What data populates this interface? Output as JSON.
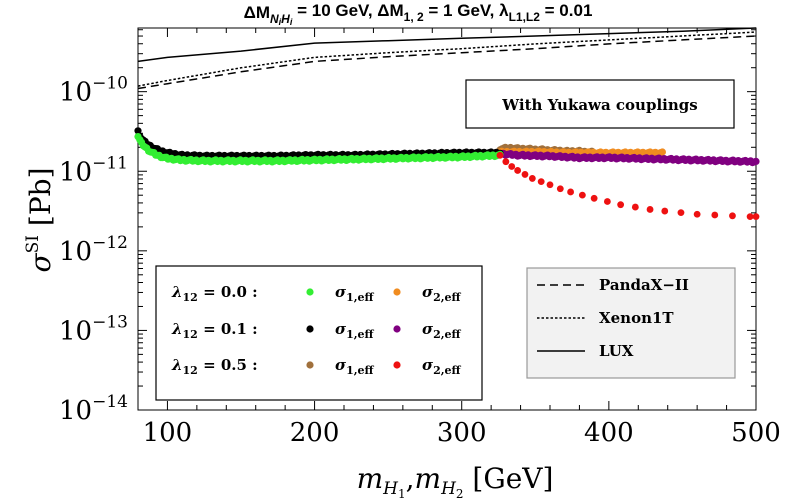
{
  "chart_data": {
    "type": "scatter",
    "title": "ΔM",
    "title_parts": {
      "delta_m": "ΔM",
      "sub_nh": "N",
      "sub_nh_i": "i",
      "sub_h": "H",
      "sub_h_i": "i",
      "value1": " = 10 GeV, ΔM",
      "sub_12": "1, 2",
      "value2": " = 1 GeV, λ",
      "sub_l": "L1,L2",
      "value3": " = 0.01"
    },
    "xlabel_parts": {
      "m": "m",
      "sub_h1": "H",
      "sub_h1_idx": "1",
      "comma": ",",
      "sub_h2": "H",
      "sub_h2_idx": "2",
      "unit": " [GeV]"
    },
    "ylabel_parts": {
      "sigma": "σ",
      "sup": "SI",
      "unit": " [Pb]"
    },
    "xlim": [
      80,
      500
    ],
    "ylim_log10": [
      -14,
      -9.2
    ],
    "yscale": "log",
    "x_ticks": [
      "100",
      "200",
      "300",
      "400",
      "500"
    ],
    "x_tick_values": [
      100,
      200,
      300,
      400,
      500
    ],
    "y_ticks": [
      {
        "base": "10",
        "exp": "−10",
        "value": -10
      },
      {
        "base": "10",
        "exp": "−11",
        "value": -11
      },
      {
        "base": "10",
        "exp": "−12",
        "value": -12
      },
      {
        "base": "10",
        "exp": "−13",
        "value": -13
      },
      {
        "base": "10",
        "exp": "−14",
        "value": -14
      }
    ],
    "annotation": "With Yukawa couplings",
    "limit_curves": [
      {
        "name": "LUX",
        "style": "solid",
        "x": [
          80,
          100,
          150,
          200,
          250,
          300,
          350,
          400,
          450,
          500
        ],
        "log10_y": [
          -9.62,
          -9.57,
          -9.49,
          -9.39,
          -9.36,
          -9.33,
          -9.3,
          -9.27,
          -9.24,
          -9.2
        ]
      },
      {
        "name": "Xenon1T",
        "style": "dotted",
        "x": [
          80,
          100,
          150,
          200,
          250,
          300,
          350,
          400,
          450,
          500
        ],
        "log10_y": [
          -9.93,
          -9.86,
          -9.7,
          -9.57,
          -9.51,
          -9.46,
          -9.4,
          -9.35,
          -9.3,
          -9.25
        ]
      },
      {
        "name": "PandaX−II",
        "style": "dashed",
        "x": [
          80,
          100,
          150,
          200,
          250,
          300,
          350,
          400,
          450,
          500
        ],
        "log10_y": [
          -9.96,
          -9.9,
          -9.75,
          -9.62,
          -9.56,
          -9.51,
          -9.46,
          -9.4,
          -9.35,
          -9.3
        ]
      }
    ],
    "series": [
      {
        "lambda": "0.5",
        "sigma_index": "1",
        "color": "#a0703c",
        "label": "σ",
        "x": [
          326,
          330,
          335,
          340,
          345,
          350,
          355,
          360,
          365,
          370,
          375,
          380,
          385,
          390
        ],
        "log10_y": [
          -10.72,
          -10.71,
          -10.71,
          -10.72,
          -10.72,
          -10.73,
          -10.73,
          -10.74,
          -10.74,
          -10.75,
          -10.75,
          -10.75,
          -10.76,
          -10.76
        ]
      },
      {
        "lambda": "0.0",
        "sigma_index": "2",
        "color": "#f08c20",
        "label": "σ",
        "x": [
          326,
          340,
          355,
          370,
          385,
          400,
          415,
          425,
          437
        ],
        "log10_y": [
          -10.76,
          -10.76,
          -10.76,
          -10.77,
          -10.77,
          -10.77,
          -10.77,
          -10.77,
          -10.77
        ]
      },
      {
        "lambda": "0.1",
        "sigma_index": "2",
        "color": "#800080",
        "label": "σ",
        "x": [
          326,
          340,
          360,
          380,
          400,
          420,
          440,
          460,
          480,
          500
        ],
        "log10_y": [
          -10.78,
          -10.8,
          -10.81,
          -10.83,
          -10.83,
          -10.84,
          -10.85,
          -10.86,
          -10.87,
          -10.88
        ]
      },
      {
        "lambda": "0.1",
        "sigma_index": "1",
        "color": "#000000",
        "label": "σ",
        "x": [
          80,
          82,
          85,
          88,
          92,
          96,
          100,
          110,
          125,
          150,
          175,
          200,
          225,
          250,
          275,
          300,
          326
        ],
        "log10_y": [
          -10.5,
          -10.58,
          -10.64,
          -10.68,
          -10.72,
          -10.75,
          -10.77,
          -10.8,
          -10.81,
          -10.81,
          -10.81,
          -10.8,
          -10.8,
          -10.79,
          -10.78,
          -10.77,
          -10.77
        ]
      },
      {
        "lambda": "0.0",
        "sigma_index": "1",
        "color": "#33ee33",
        "label": "σ",
        "x": [
          80,
          82,
          85,
          88,
          92,
          96,
          100,
          110,
          125,
          150,
          175,
          200,
          225,
          250,
          275,
          300,
          326
        ],
        "log10_y": [
          -10.56,
          -10.64,
          -10.7,
          -10.75,
          -10.79,
          -10.82,
          -10.84,
          -10.86,
          -10.87,
          -10.87,
          -10.87,
          -10.86,
          -10.85,
          -10.84,
          -10.83,
          -10.82,
          -10.8
        ]
      },
      {
        "lambda": "0.5",
        "sigma_index": "2",
        "color": "#ee1111",
        "label": "σ",
        "x": [
          326,
          330,
          334,
          338,
          343,
          348,
          354,
          360,
          367,
          374,
          382,
          390,
          399,
          408,
          418,
          428,
          438,
          449,
          460,
          472,
          484,
          496,
          500
        ],
        "log10_y": [
          -10.8,
          -10.88,
          -10.94,
          -10.99,
          -11.04,
          -11.09,
          -11.13,
          -11.17,
          -11.22,
          -11.26,
          -11.3,
          -11.34,
          -11.38,
          -11.42,
          -11.45,
          -11.48,
          -11.5,
          -11.52,
          -11.54,
          -11.55,
          -11.56,
          -11.57,
          -11.57
        ]
      }
    ],
    "legend_points": {
      "rows": [
        {
          "label": "λ",
          "sub": "12",
          "value": " = 0.0 :"
        },
        {
          "label": "λ",
          "sub": "12",
          "value": " = 0.1 :"
        },
        {
          "label": "λ",
          "sub": "12",
          "value": " = 0.5 :"
        }
      ],
      "entries": [
        {
          "row": 0,
          "col": 0,
          "color": "#33ee33",
          "label": "σ",
          "sub": "1,eff"
        },
        {
          "row": 0,
          "col": 1,
          "color": "#f08c20",
          "label": "σ",
          "sub": "2,eff"
        },
        {
          "row": 1,
          "col": 0,
          "color": "#000000",
          "label": "σ",
          "sub": "1,eff"
        },
        {
          "row": 1,
          "col": 1,
          "color": "#800080",
          "label": "σ",
          "sub": "2,eff"
        },
        {
          "row": 2,
          "col": 0,
          "color": "#a0703c",
          "label": "σ",
          "sub": "1,eff"
        },
        {
          "row": 2,
          "col": 1,
          "color": "#ee1111",
          "label": "σ",
          "sub": "2,eff"
        }
      ]
    },
    "legend_lines": [
      {
        "style": "dashed",
        "label": "PandaX−II"
      },
      {
        "style": "dotted",
        "label": "Xenon1T"
      },
      {
        "style": "solid",
        "label": "LUX"
      }
    ]
  }
}
